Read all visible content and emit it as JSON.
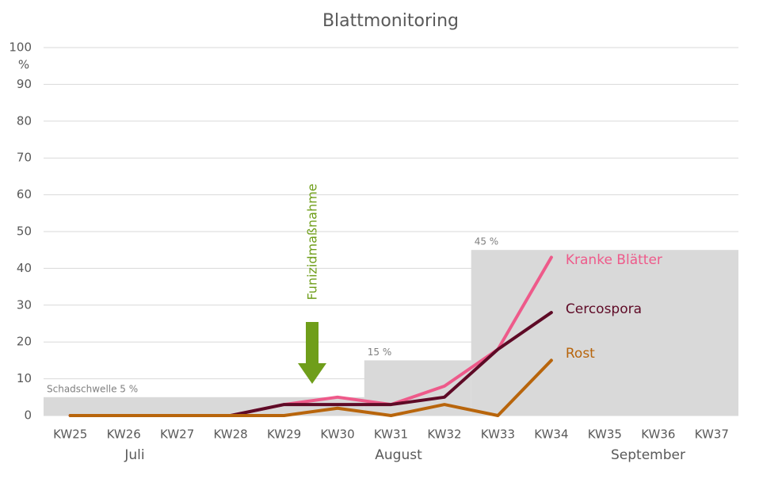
{
  "chart_data": {
    "type": "line",
    "title": "Blattmonitoring",
    "y_unit": "%",
    "categories": [
      "KW25",
      "KW26",
      "KW27",
      "KW28",
      "KW29",
      "KW30",
      "KW31",
      "KW32",
      "KW33",
      "KW34",
      "KW35",
      "KW36",
      "KW37"
    ],
    "months": [
      "Juli",
      "August",
      "September"
    ],
    "series": [
      {
        "name": "Kranke Blätter",
        "color": "#ee5a8a",
        "values": [
          0,
          0,
          0,
          0,
          3,
          5,
          3,
          8,
          18,
          43,
          null,
          null,
          null
        ]
      },
      {
        "name": "Cercospora",
        "color": "#5e0a26",
        "values": [
          0,
          0,
          0,
          0,
          3,
          3,
          3,
          5,
          18,
          28,
          null,
          null,
          null
        ]
      },
      {
        "name": "Rost",
        "color": "#b8650c",
        "values": [
          0,
          0,
          0,
          0,
          0,
          2,
          0,
          3,
          0,
          15,
          null,
          null,
          null
        ]
      }
    ],
    "thresholds": [
      {
        "label": "Schadschwelle 5 %",
        "value": 5,
        "from": "KW25",
        "to": "KW30"
      },
      {
        "label": "15 %",
        "value": 15,
        "from": "KW31",
        "to": "KW32"
      },
      {
        "label": "45 %",
        "value": 45,
        "from": "KW33",
        "to": "KW37"
      }
    ],
    "annotation": "Funizidmaßnahme",
    "ylim": [
      0,
      100
    ],
    "yticks": [
      0,
      10,
      20,
      30,
      40,
      50,
      60,
      70,
      80,
      90,
      100
    ],
    "grid": true
  }
}
